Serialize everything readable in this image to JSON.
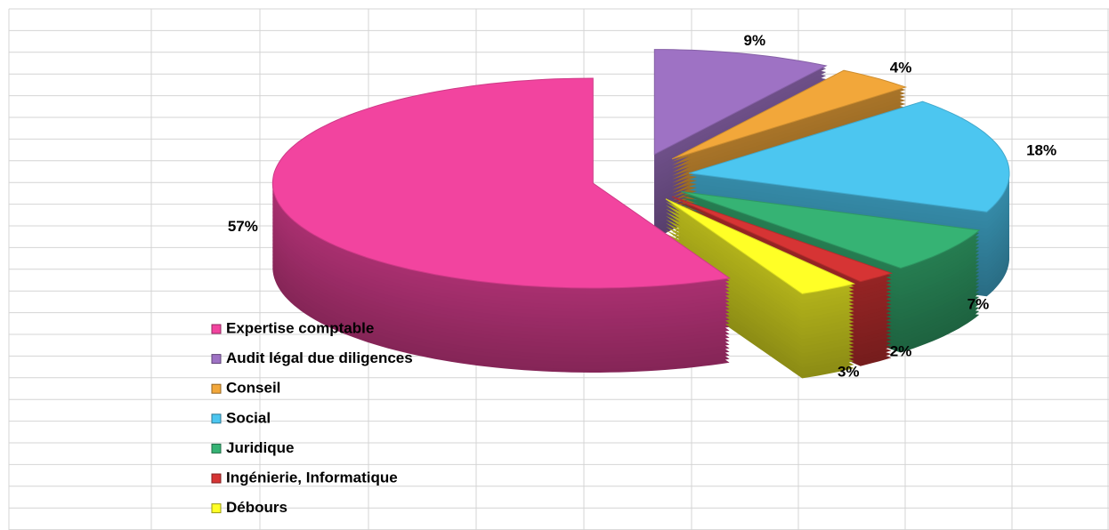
{
  "chart_data": {
    "type": "pie",
    "categories": [
      "Expertise comptable",
      "Audit légal due diligences",
      "Conseil",
      "Social",
      "Juridique",
      "Ingénierie, Informatique",
      "Débours"
    ],
    "values": [
      57,
      9,
      4,
      18,
      7,
      2,
      3
    ],
    "value_labels": [
      "57%",
      "9%",
      "4%",
      "18%",
      "7%",
      "2%",
      "3%"
    ],
    "colors": [
      "#f2449f",
      "#9e72c4",
      "#f2a73a",
      "#4cc6f0",
      "#36b374",
      "#d63434",
      "#ffff26"
    ],
    "legend": "bottom-left"
  }
}
